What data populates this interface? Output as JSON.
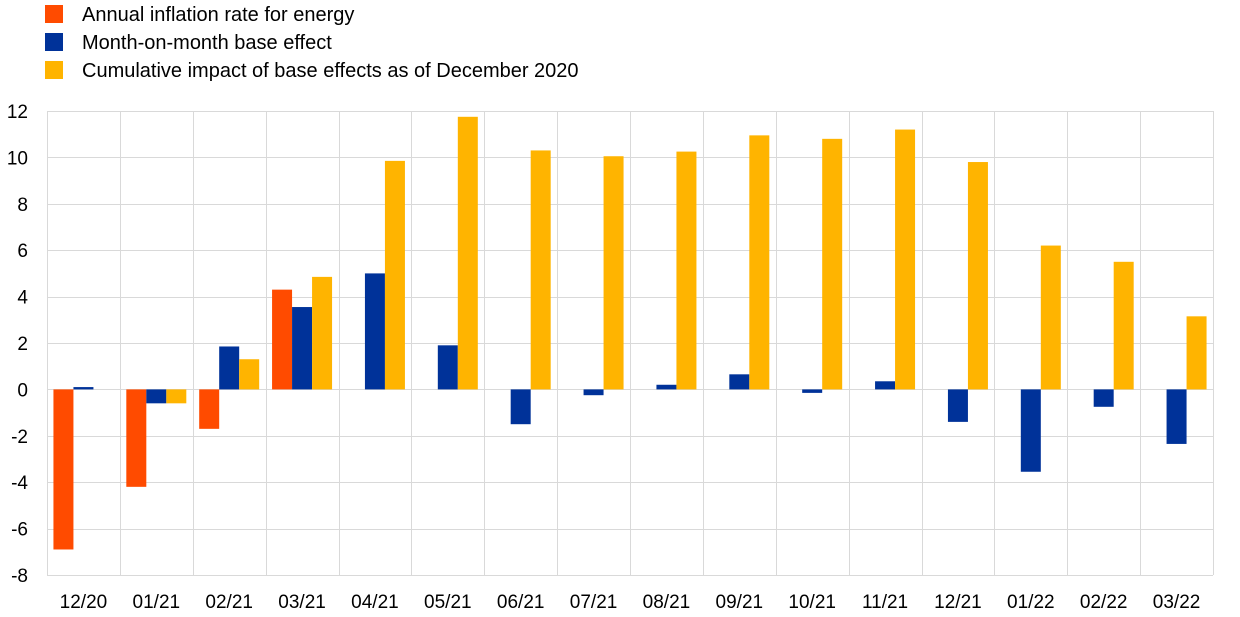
{
  "chart_data": {
    "type": "bar",
    "title": "",
    "xlabel": "",
    "ylabel": "",
    "ylim": [
      -8,
      12
    ],
    "yticks": [
      -8,
      -6,
      -4,
      -2,
      0,
      2,
      4,
      6,
      8,
      10,
      12
    ],
    "grid": true,
    "legend": "top-left",
    "categories": [
      "12/20",
      "01/21",
      "02/21",
      "03/21",
      "04/21",
      "05/21",
      "06/21",
      "07/21",
      "08/21",
      "09/21",
      "10/21",
      "11/21",
      "12/21",
      "01/22",
      "02/22",
      "03/22"
    ],
    "series": [
      {
        "name": "Annual inflation rate for energy",
        "color": "#ff4b00",
        "values": [
          -6.9,
          -4.2,
          -1.7,
          4.3,
          null,
          null,
          null,
          null,
          null,
          null,
          null,
          null,
          null,
          null,
          null,
          null
        ]
      },
      {
        "name": "Month-on-month base effect",
        "color": "#003299",
        "values": [
          0.1,
          -0.6,
          1.85,
          3.55,
          5.0,
          1.9,
          -1.5,
          -0.25,
          0.2,
          0.65,
          -0.15,
          0.35,
          -1.4,
          -3.55,
          -0.75,
          -2.35
        ]
      },
      {
        "name": "Cumulative impact of base effects as of December 2020",
        "color": "#ffb400",
        "values": [
          null,
          -0.6,
          1.3,
          4.85,
          9.85,
          11.75,
          10.3,
          10.05,
          10.25,
          10.95,
          10.8,
          11.2,
          9.8,
          6.2,
          5.5,
          3.15
        ]
      }
    ]
  }
}
